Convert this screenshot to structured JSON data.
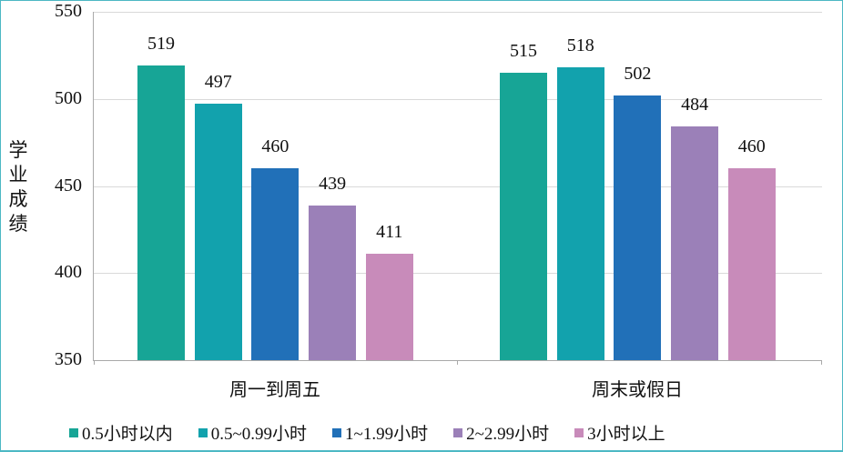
{
  "chart_data": {
    "type": "bar",
    "title": "",
    "xlabel": "",
    "ylabel": "学业成绩",
    "ylim": [
      350,
      550
    ],
    "yticks": [
      350,
      400,
      450,
      500,
      550
    ],
    "grid": true,
    "legend_position": "bottom",
    "categories": [
      "周一到周五",
      "周末或假日"
    ],
    "series": [
      {
        "name": "0.5小时以内",
        "color": "#17a596",
        "values": [
          519,
          515
        ]
      },
      {
        "name": "0.5~0.99小时",
        "color": "#12a2ad",
        "values": [
          497,
          518
        ]
      },
      {
        "name": "1~1.99小时",
        "color": "#2170b8",
        "values": [
          460,
          502
        ]
      },
      {
        "name": "2~2.99小时",
        "color": "#9b80b8",
        "values": [
          439,
          484
        ]
      },
      {
        "name": "3小时以上",
        "color": "#c88bba",
        "values": [
          411,
          460
        ]
      }
    ]
  },
  "axis": {
    "ylabel": "学业成绩",
    "yticks": [
      "550",
      "500",
      "450",
      "400",
      "350"
    ]
  },
  "legend": [
    {
      "label": "0.5小时以内",
      "color": "#17a596"
    },
    {
      "label": "0.5~0.99小时",
      "color": "#12a2ad"
    },
    {
      "label": "1~1.99小时",
      "color": "#2170b8"
    },
    {
      "label": "2~2.99小时",
      "color": "#9b80b8"
    },
    {
      "label": "3小时以上",
      "color": "#c88bba"
    }
  ]
}
